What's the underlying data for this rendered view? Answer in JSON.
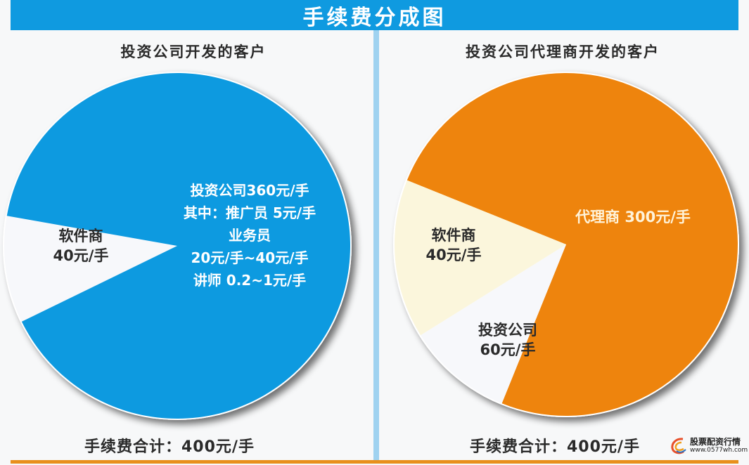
{
  "header": {
    "title": "手续费分成图"
  },
  "colors": {
    "header_bg": "#0f9ae0",
    "left_main": "#0f9ae0",
    "right_main": "#ee8408",
    "software_slice": "#f7f8fb",
    "investment_slice_right": "#fbf6dc",
    "divider": "#9fd2f0",
    "bottom_bar": "#e8901c"
  },
  "left_panel": {
    "title": "投资公司开发的客户",
    "slices": [
      {
        "name": "软件商",
        "value": 40,
        "label_lines": [
          "软件商",
          "40元/手"
        ]
      },
      {
        "name": "投资公司",
        "value": 360,
        "label_lines": [
          "投资公司360元/手",
          "其中：推广员 5元/手",
          "业务员",
          "20元/手~40元/手",
          "讲师 0.2~1元/手"
        ]
      }
    ],
    "total": "手续费合计：400元/手"
  },
  "right_panel": {
    "title": "投资公司代理商开发的客户",
    "slices": [
      {
        "name": "代理商",
        "value": 300,
        "label_lines": [
          "代理商 300元/手"
        ]
      },
      {
        "name": "软件商",
        "value": 40,
        "label_lines": [
          "软件商",
          "40元/手"
        ]
      },
      {
        "name": "投资公司",
        "value": 60,
        "label_lines": [
          "投资公司",
          "60元/手"
        ]
      }
    ],
    "total": "手续费合计：400元/手"
  },
  "watermark": {
    "name": "股票配资行情",
    "url": "www.0577wh.com"
  },
  "chart_data": [
    {
      "type": "pie",
      "title": "投资公司开发的客户",
      "categories": [
        "软件商",
        "投资公司"
      ],
      "values": [
        40,
        360
      ],
      "unit": "元/手",
      "total": 400,
      "annotations": [
        "其中：推广员 5元/手",
        "业务员 20元/手~40元/手",
        "讲师 0.2~1元/手"
      ]
    },
    {
      "type": "pie",
      "title": "投资公司代理商开发的客户",
      "categories": [
        "代理商",
        "软件商",
        "投资公司"
      ],
      "values": [
        300,
        40,
        60
      ],
      "unit": "元/手",
      "total": 400
    }
  ]
}
